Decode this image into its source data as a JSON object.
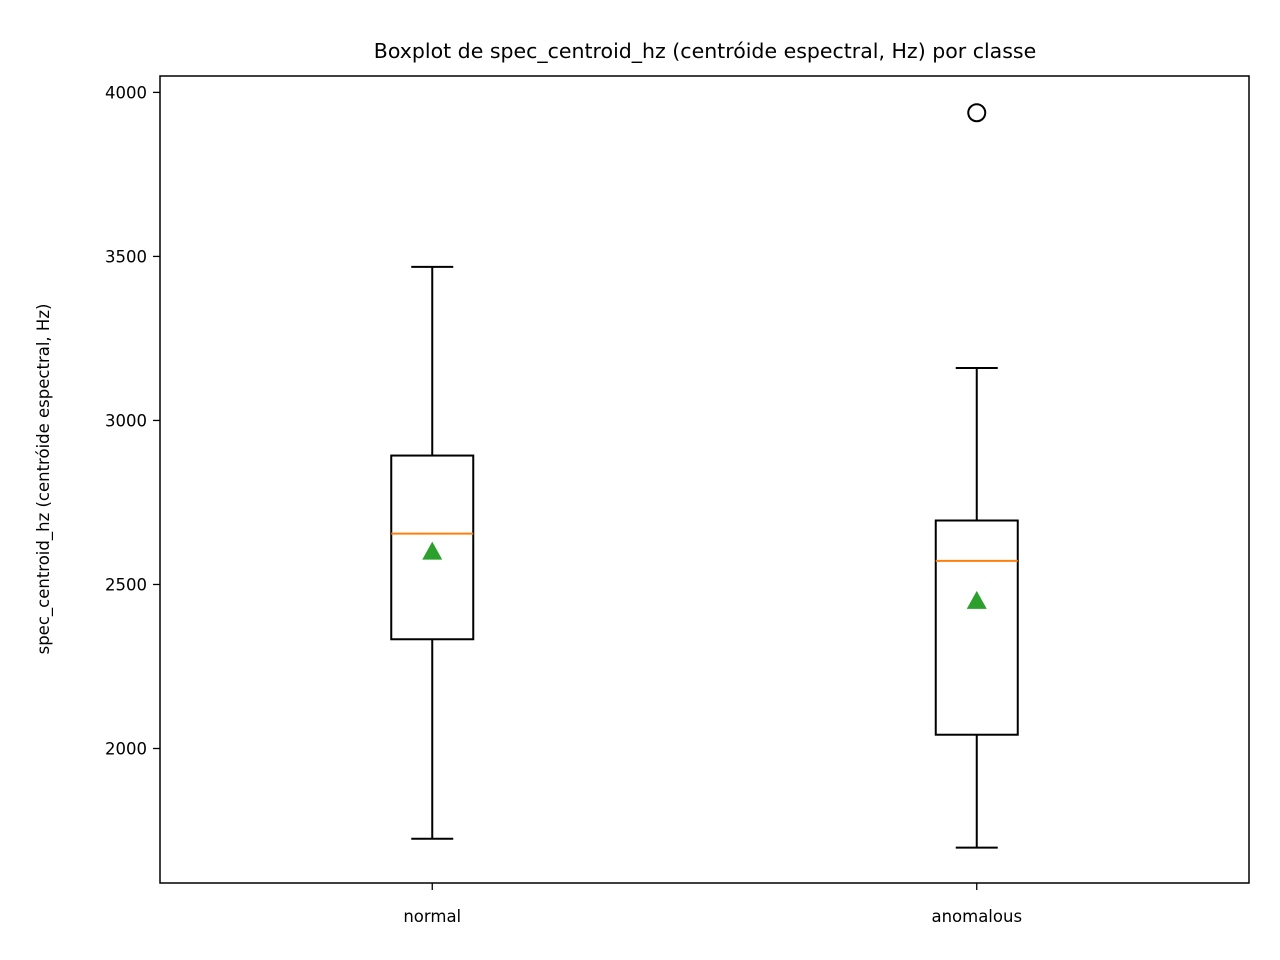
{
  "chart_data": {
    "type": "box",
    "title": "Boxplot de spec_centroid_hz (centróide espectral, Hz) por classe",
    "xlabel": "",
    "ylabel": "spec_centroid_hz (centróide espectral, Hz)",
    "ylim": [
      1590,
      4050
    ],
    "yticks": [
      2000,
      2500,
      3000,
      3500,
      4000
    ],
    "grid": false,
    "categories": [
      "normal",
      "anomalous"
    ],
    "boxes": [
      {
        "category": "normal",
        "whisker_low": 1725,
        "q1": 2333,
        "median": 2655,
        "q3": 2893,
        "whisker_high": 3468,
        "mean": 2600,
        "outliers": []
      },
      {
        "category": "anomalous",
        "whisker_low": 1698,
        "q1": 2042,
        "median": 2572,
        "q3": 2695,
        "whisker_high": 3160,
        "mean": 2450,
        "outliers": [
          3938
        ]
      }
    ],
    "colors": {
      "box": "#000000",
      "median": "#ff7f0e",
      "mean": "#2ca02c",
      "outlier": "#000000"
    }
  }
}
